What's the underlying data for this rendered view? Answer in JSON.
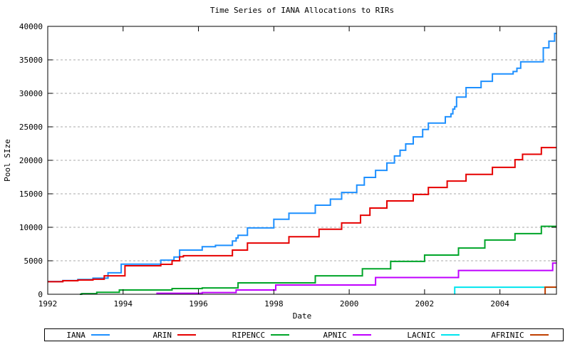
{
  "chart_data": {
    "type": "line",
    "style": "step",
    "title": "Time Series of IANA Allocations to RIRs",
    "xlabel": "Date",
    "ylabel": "Pool SIze",
    "xlim": [
      1992,
      2005.5
    ],
    "ylim": [
      0,
      40000
    ],
    "x_ticks": [
      1992,
      1994,
      1996,
      1998,
      2000,
      2002,
      2004
    ],
    "y_ticks": [
      0,
      5000,
      10000,
      15000,
      20000,
      25000,
      30000,
      35000,
      40000
    ],
    "grid": "horizontal dashed",
    "grid_color": "#aaaaaa",
    "frame_color": "#000000",
    "background": "#ffffff",
    "legend_position": "bottom",
    "series": [
      {
        "name": "IANA",
        "color": "#1e90ff",
        "points": [
          [
            1992.0,
            1900
          ],
          [
            1992.4,
            2050
          ],
          [
            1992.8,
            2200
          ],
          [
            1993.2,
            2400
          ],
          [
            1993.6,
            3200
          ],
          [
            1993.95,
            4500
          ],
          [
            1995.0,
            5100
          ],
          [
            1995.35,
            5550
          ],
          [
            1995.5,
            6600
          ],
          [
            1996.1,
            7100
          ],
          [
            1996.45,
            7300
          ],
          [
            1996.9,
            7950
          ],
          [
            1997.0,
            8400
          ],
          [
            1997.05,
            8800
          ],
          [
            1997.3,
            9900
          ],
          [
            1998.0,
            11200
          ],
          [
            1998.4,
            12100
          ],
          [
            1999.1,
            13300
          ],
          [
            1999.5,
            14200
          ],
          [
            1999.8,
            15200
          ],
          [
            2000.2,
            16300
          ],
          [
            2000.4,
            17450
          ],
          [
            2000.7,
            18500
          ],
          [
            2001.0,
            19600
          ],
          [
            2001.2,
            20650
          ],
          [
            2001.35,
            21500
          ],
          [
            2001.5,
            22450
          ],
          [
            2001.7,
            23500
          ],
          [
            2001.95,
            24600
          ],
          [
            2002.1,
            25550
          ],
          [
            2002.55,
            26500
          ],
          [
            2002.7,
            26950
          ],
          [
            2002.75,
            27650
          ],
          [
            2002.8,
            28000
          ],
          [
            2002.85,
            29450
          ],
          [
            2003.1,
            30850
          ],
          [
            2003.5,
            31800
          ],
          [
            2003.8,
            32900
          ],
          [
            2004.35,
            33250
          ],
          [
            2004.45,
            33750
          ],
          [
            2004.55,
            34700
          ],
          [
            2005.15,
            36800
          ],
          [
            2005.3,
            37800
          ],
          [
            2005.45,
            38950
          ]
        ]
      },
      {
        "name": "ARIN",
        "color": "#e60000",
        "points": [
          [
            1992.0,
            1870
          ],
          [
            1992.4,
            2020
          ],
          [
            1992.8,
            2130
          ],
          [
            1993.2,
            2250
          ],
          [
            1993.5,
            2750
          ],
          [
            1994.05,
            4260
          ],
          [
            1995.0,
            4470
          ],
          [
            1995.3,
            5000
          ],
          [
            1995.5,
            5600
          ],
          [
            1995.6,
            5750
          ],
          [
            1996.9,
            6600
          ],
          [
            1997.3,
            7650
          ],
          [
            1998.4,
            8600
          ],
          [
            1999.2,
            9700
          ],
          [
            1999.8,
            10650
          ],
          [
            2000.3,
            11800
          ],
          [
            2000.55,
            12870
          ],
          [
            2001.0,
            13940
          ],
          [
            2001.7,
            14900
          ],
          [
            2002.1,
            15950
          ],
          [
            2002.6,
            16900
          ],
          [
            2003.1,
            17900
          ],
          [
            2003.8,
            18950
          ],
          [
            2004.4,
            20100
          ],
          [
            2004.6,
            20900
          ],
          [
            2005.1,
            21900
          ]
        ]
      },
      {
        "name": "RIPENCC",
        "color": "#00a529",
        "points": [
          [
            1992.85,
            0
          ],
          [
            1992.9,
            100
          ],
          [
            1993.3,
            300
          ],
          [
            1993.9,
            640
          ],
          [
            1995.3,
            850
          ],
          [
            1996.1,
            950
          ],
          [
            1997.05,
            1700
          ],
          [
            1999.1,
            2750
          ],
          [
            2000.35,
            3800
          ],
          [
            2001.1,
            4900
          ],
          [
            2002.0,
            5850
          ],
          [
            2002.9,
            6900
          ],
          [
            2003.6,
            8100
          ],
          [
            2004.4,
            9050
          ],
          [
            2005.1,
            10150
          ]
        ]
      },
      {
        "name": "APNIC",
        "color": "#bf00ff",
        "points": [
          [
            1994.9,
            0
          ],
          [
            1994.9,
            150
          ],
          [
            1996.1,
            250
          ],
          [
            1997.0,
            640
          ],
          [
            1998.05,
            1380
          ],
          [
            2000.7,
            2500
          ],
          [
            2002.9,
            3550
          ],
          [
            2005.4,
            4650
          ]
        ]
      },
      {
        "name": "LACNIC",
        "color": "#00e5ee",
        "points": [
          [
            2002.8,
            0
          ],
          [
            2002.8,
            1050
          ]
        ]
      },
      {
        "name": "AFRINIC",
        "color": "#c04000",
        "points": [
          [
            2005.2,
            0
          ],
          [
            2005.2,
            1060
          ]
        ]
      }
    ]
  }
}
